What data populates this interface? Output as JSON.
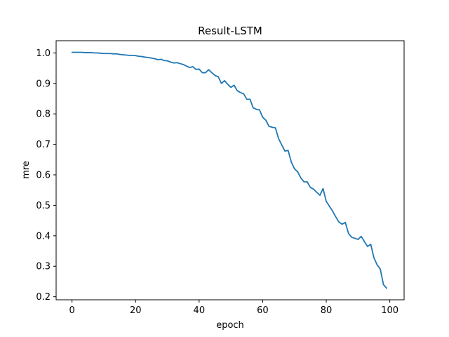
{
  "chart_data": {
    "type": "line",
    "title": "Result-LSTM",
    "xlabel": "epoch",
    "ylabel": "mre",
    "xlim": [
      -5,
      104.5
    ],
    "ylim": [
      0.19,
      1.04
    ],
    "xticks": [
      0,
      20,
      40,
      60,
      80,
      100
    ],
    "yticks": [
      0.2,
      0.3,
      0.4,
      0.5,
      0.6,
      0.7,
      0.8,
      0.9,
      1.0
    ],
    "xtick_labels": [
      "0",
      "20",
      "40",
      "60",
      "80",
      "100"
    ],
    "ytick_labels": [
      "0.2",
      "0.3",
      "0.4",
      "0.5",
      "0.6",
      "0.7",
      "0.8",
      "0.9",
      "1.0"
    ],
    "grid": false,
    "legend": "none",
    "line_color": "#1f77b4",
    "series": [
      {
        "x": [
          0,
          1,
          2,
          3,
          4,
          5,
          6,
          7,
          8,
          9,
          10,
          11,
          12,
          13,
          14,
          15,
          16,
          17,
          18,
          19,
          20,
          21,
          22,
          23,
          24,
          25,
          26,
          27,
          28,
          29,
          30,
          31,
          32,
          33,
          34,
          35,
          36,
          37,
          38,
          39,
          40,
          41,
          42,
          43,
          44,
          45,
          46,
          47,
          48,
          49,
          50,
          51,
          52,
          53,
          54,
          55,
          56,
          57,
          58,
          59,
          60,
          61,
          62,
          63,
          64,
          65,
          66,
          67,
          68,
          69,
          70,
          71,
          72,
          73,
          74,
          75,
          76,
          77,
          78,
          79,
          80,
          81,
          82,
          83,
          84,
          85,
          86,
          87,
          88,
          89,
          90,
          91,
          92,
          93,
          94,
          95,
          96,
          97,
          98,
          99
        ],
        "values": [
          1.002,
          1.002,
          1.002,
          1.002,
          1.001,
          1.001,
          1.001,
          1.0,
          1.0,
          0.999,
          0.998,
          0.998,
          0.998,
          0.997,
          0.997,
          0.995,
          0.994,
          0.993,
          0.992,
          0.992,
          0.991,
          0.989,
          0.988,
          0.986,
          0.985,
          0.983,
          0.981,
          0.978,
          0.979,
          0.975,
          0.974,
          0.97,
          0.967,
          0.968,
          0.965,
          0.962,
          0.957,
          0.952,
          0.955,
          0.946,
          0.947,
          0.935,
          0.935,
          0.945,
          0.935,
          0.926,
          0.922,
          0.9,
          0.909,
          0.897,
          0.887,
          0.894,
          0.876,
          0.87,
          0.866,
          0.848,
          0.848,
          0.82,
          0.815,
          0.813,
          0.789,
          0.779,
          0.759,
          0.756,
          0.754,
          0.719,
          0.698,
          0.678,
          0.68,
          0.642,
          0.62,
          0.61,
          0.59,
          0.577,
          0.577,
          0.559,
          0.553,
          0.543,
          0.533,
          0.555,
          0.513,
          0.497,
          0.481,
          0.462,
          0.445,
          0.438,
          0.444,
          0.408,
          0.395,
          0.392,
          0.388,
          0.398,
          0.381,
          0.365,
          0.372,
          0.328,
          0.305,
          0.291,
          0.24,
          0.228
        ]
      }
    ]
  }
}
